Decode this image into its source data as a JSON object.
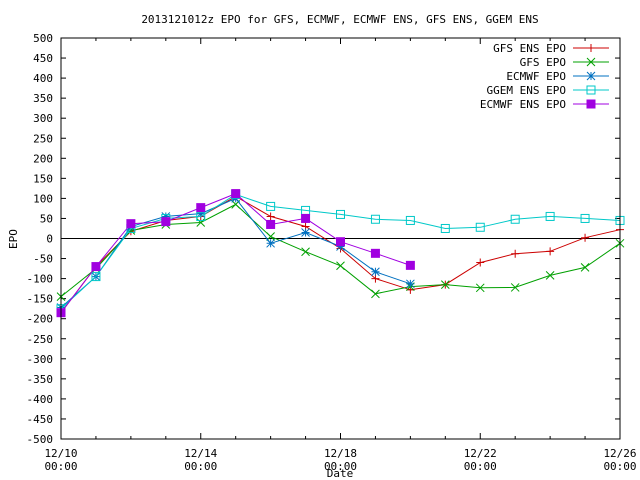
{
  "chart_data": {
    "type": "line",
    "title": "2013121012z EPO for GFS, ECMWF, ECMWF ENS, GFS ENS, GGEM ENS",
    "xlabel": "Date",
    "ylabel": "EPO",
    "ylim": [
      -500,
      500
    ],
    "yticks": [
      -500,
      -450,
      -400,
      -350,
      -300,
      -250,
      -200,
      -150,
      -100,
      -50,
      0,
      50,
      100,
      150,
      200,
      250,
      300,
      350,
      400,
      450,
      500
    ],
    "xlim": [
      0,
      16
    ],
    "xticks": [
      {
        "x": 0,
        "date": "12/10",
        "time": "00:00"
      },
      {
        "x": 4,
        "date": "12/14",
        "time": "00:00"
      },
      {
        "x": 8,
        "date": "12/18",
        "time": "00:00"
      },
      {
        "x": 12,
        "date": "12/22",
        "time": "00:00"
      },
      {
        "x": 16,
        "date": "12/26",
        "time": "00:00"
      }
    ],
    "legend_position": "top-right",
    "grid": false,
    "zero_line": true,
    "series": [
      {
        "name": "GFS ENS EPO",
        "color": "#cc0000",
        "marker": "plus",
        "x": [
          0,
          1,
          2,
          3,
          4,
          5,
          6,
          7,
          8,
          9,
          10,
          11,
          12,
          13,
          14,
          15,
          16
        ],
        "y": [
          -185,
          -70,
          18,
          45,
          55,
          105,
          55,
          30,
          -25,
          -100,
          -128,
          -115,
          -60,
          -38,
          -32,
          2,
          22
        ]
      },
      {
        "name": "GFS EPO",
        "color": "#00a000",
        "marker": "cross",
        "x": [
          0,
          1,
          2,
          3,
          4,
          5,
          6,
          7,
          8,
          9,
          10,
          11,
          12,
          13,
          14,
          15,
          16
        ],
        "y": [
          -145,
          -75,
          20,
          35,
          40,
          85,
          5,
          -33,
          -68,
          -138,
          -120,
          -115,
          -123,
          -122,
          -92,
          -72,
          -12
        ]
      },
      {
        "name": "ECMWF EPO",
        "color": "#0070c0",
        "marker": "star",
        "x": [
          0,
          1,
          2,
          3,
          4,
          5,
          6,
          7,
          8,
          9,
          10
        ],
        "y": [
          -172,
          -95,
          30,
          55,
          62,
          100,
          -12,
          15,
          -20,
          -83,
          -113
        ]
      },
      {
        "name": "GGEM ENS EPO",
        "color": "#00c8c8",
        "marker": "open-square",
        "x": [
          0,
          1,
          2,
          3,
          4,
          5,
          6,
          7,
          8,
          9,
          10,
          11,
          12,
          13,
          14,
          15,
          16
        ],
        "y": [
          -175,
          -95,
          25,
          50,
          55,
          110,
          80,
          70,
          60,
          48,
          45,
          25,
          28,
          48,
          55,
          50,
          45
        ]
      },
      {
        "name": "ECMWF ENS EPO",
        "color": "#a000e0",
        "marker": "filled-square",
        "x": [
          0,
          1,
          2,
          3,
          4,
          5,
          6,
          7,
          8,
          9,
          10
        ],
        "y": [
          -185,
          -70,
          37,
          42,
          77,
          112,
          35,
          50,
          -8,
          -37,
          -67
        ]
      }
    ]
  }
}
